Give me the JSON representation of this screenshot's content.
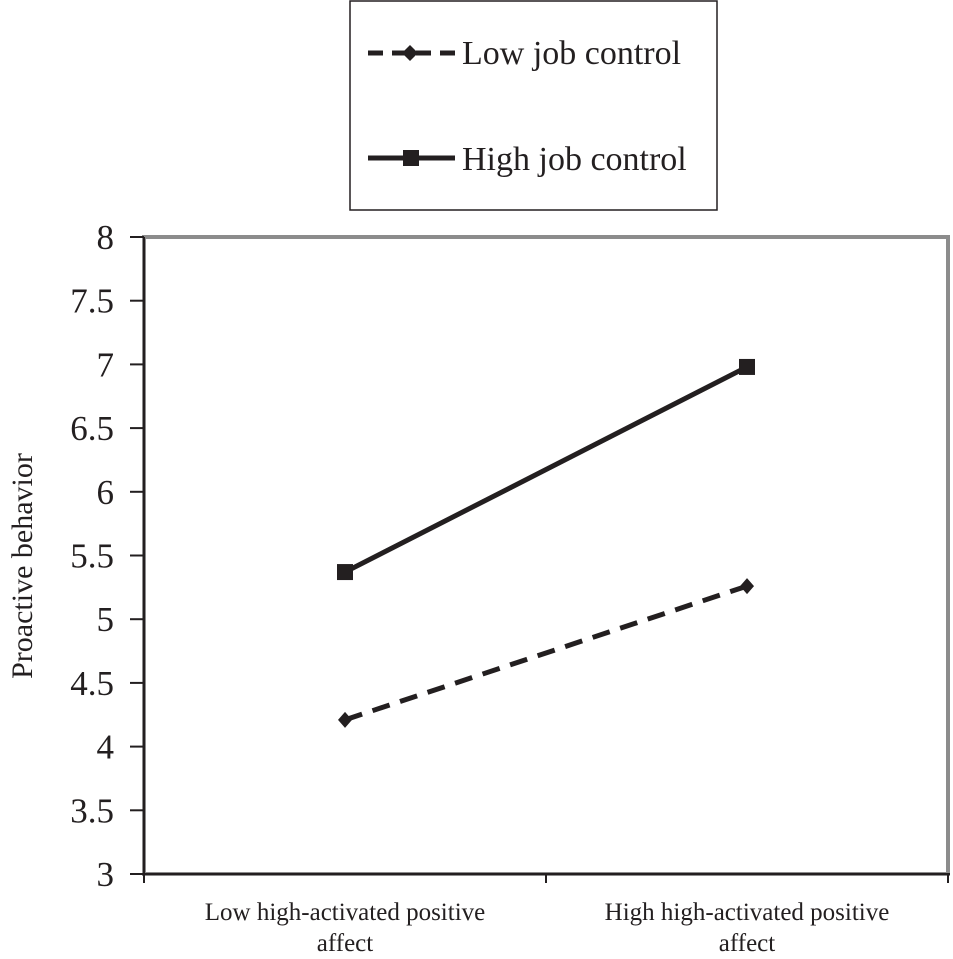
{
  "chart_data": {
    "type": "line",
    "title": "",
    "xlabel": "",
    "ylabel": "Proactive behavior",
    "categories": [
      [
        "Low high-activated positive",
        "affect"
      ],
      [
        "High high-activated positive",
        "affect"
      ]
    ],
    "ylim": [
      3,
      8
    ],
    "yticks": [
      "3",
      "3.5",
      "4",
      "4.5",
      "5",
      "5.5",
      "6",
      "6.5",
      "7",
      "7.5",
      "8"
    ],
    "legend_position": "top-center",
    "grid": false,
    "series": [
      {
        "name": "Low job control",
        "values": [
          4.21,
          5.26
        ],
        "style": "dashed",
        "marker": "diamond",
        "color": "#231f20"
      },
      {
        "name": "High job control",
        "values": [
          5.37,
          6.98
        ],
        "style": "solid",
        "marker": "square",
        "color": "#231f20"
      }
    ]
  }
}
